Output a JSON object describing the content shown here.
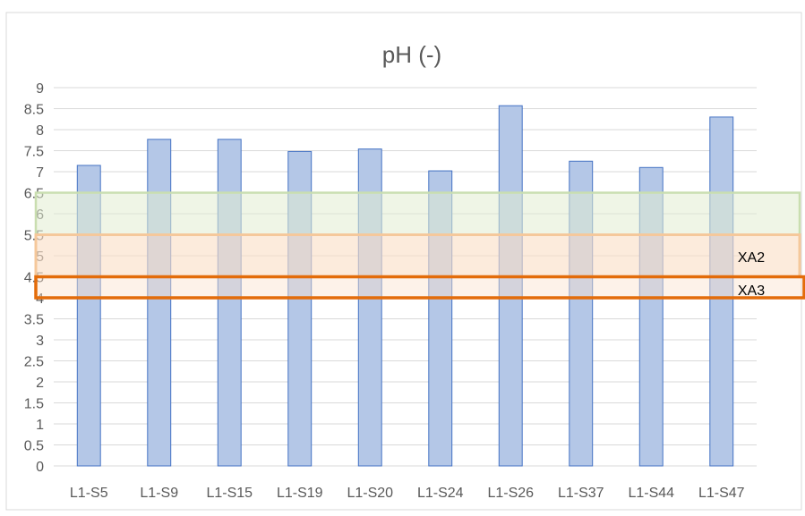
{
  "chart_data": {
    "type": "bar",
    "title": "pH (-)",
    "categories": [
      "L1-S5",
      "L1-S9",
      "L1-S15",
      "L1-S19",
      "L1-S20",
      "L1-S24",
      "L1-S26",
      "L1-S37",
      "L1-S44",
      "L1-S47"
    ],
    "series": [
      {
        "values": [
          7.15,
          7.77,
          7.77,
          7.48,
          7.54,
          7.02,
          8.57,
          7.25,
          7.1,
          8.3
        ]
      }
    ],
    "ylim": [
      0,
      9
    ],
    "yticks": [
      "0",
      "0.5",
      "1",
      "1.5",
      "2",
      "2.5",
      "3",
      "3.5",
      "4",
      "4.5",
      "5",
      "5.5",
      "6",
      "6.5",
      "7",
      "7.5",
      "8",
      "8.5",
      "9"
    ],
    "grid": true,
    "bands": [
      {
        "label": "",
        "from": 5.5,
        "to": 6.5,
        "color": "#e2ecd2",
        "border": "#c9deb0"
      },
      {
        "label": "XA2",
        "from": 4.5,
        "to": 5.5,
        "color": "#fadfc6",
        "border": "#f5c89b"
      },
      {
        "label": "XA3",
        "from": 4.0,
        "to": 4.5,
        "color": "#fbe3cf",
        "border": "#e36c0a"
      }
    ],
    "colors": {
      "bar_fill": "#b4c7e7",
      "bar_stroke": "#4472c4",
      "grid": "#d9d9d9",
      "text": "#595959"
    }
  }
}
